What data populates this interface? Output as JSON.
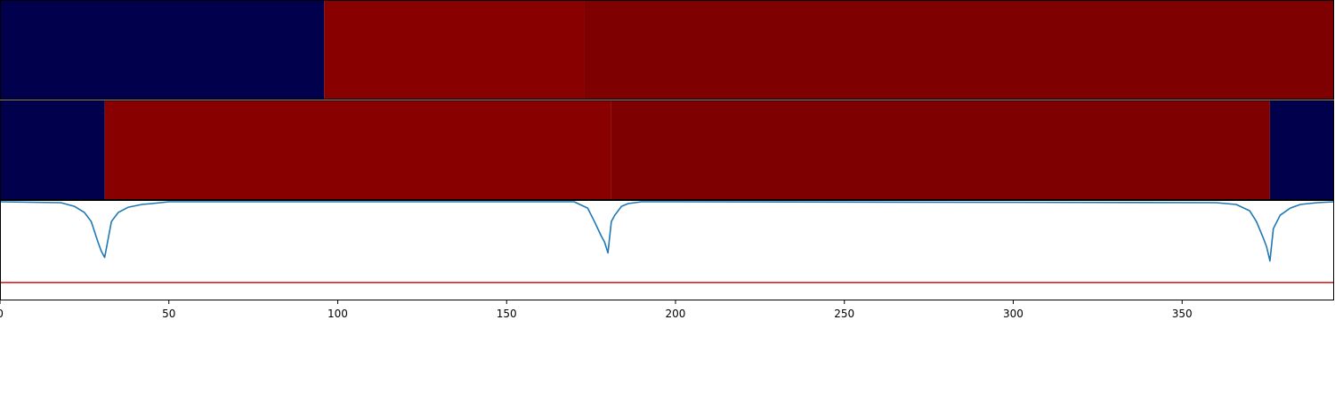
{
  "chart_data": [
    {
      "type": "heatmap",
      "panel": "segments-top",
      "xlim": [
        0,
        395
      ],
      "segments": [
        {
          "start": 0,
          "end": 96,
          "value": "low",
          "color": "#00004c"
        },
        {
          "start": 96,
          "end": 173,
          "value": "high",
          "color": "#880000"
        },
        {
          "start": 173,
          "end": 395,
          "value": "high",
          "color": "#7f0000"
        }
      ]
    },
    {
      "type": "heatmap",
      "panel": "segments-middle",
      "xlim": [
        0,
        395
      ],
      "segments": [
        {
          "start": 0,
          "end": 31,
          "value": "low",
          "color": "#00004c"
        },
        {
          "start": 31,
          "end": 181,
          "value": "high",
          "color": "#880000"
        },
        {
          "start": 181,
          "end": 376,
          "value": "high",
          "color": "#7f0000"
        },
        {
          "start": 376,
          "end": 395,
          "value": "low",
          "color": "#00004c"
        }
      ]
    },
    {
      "type": "line",
      "panel": "signal",
      "xlim": [
        0,
        395
      ],
      "ylim": [
        -1.1,
        0.02
      ],
      "series": [
        {
          "color": "#1f77b4",
          "x": [
            0,
            18,
            22,
            25,
            27,
            29,
            30,
            31,
            32,
            33,
            35,
            38,
            42,
            45,
            50,
            170,
            174,
            176,
            178,
            179,
            180,
            181,
            182,
            184,
            186,
            190,
            200,
            360,
            366,
            370,
            372,
            374,
            375,
            376,
            377,
            379,
            382,
            385,
            390,
            395
          ],
          "y": [
            0,
            -0.01,
            -0.05,
            -0.12,
            -0.22,
            -0.45,
            -0.55,
            -0.62,
            -0.42,
            -0.22,
            -0.12,
            -0.06,
            -0.03,
            -0.02,
            0,
            0,
            -0.07,
            -0.22,
            -0.38,
            -0.45,
            -0.57,
            -0.22,
            -0.15,
            -0.05,
            -0.02,
            0,
            0,
            -0.01,
            -0.03,
            -0.1,
            -0.22,
            -0.4,
            -0.5,
            -0.66,
            -0.3,
            -0.15,
            -0.07,
            -0.03,
            -0.01,
            0
          ]
        },
        {
          "color": "#d62728",
          "x": [
            0,
            395
          ],
          "y": [
            -0.9,
            -0.9
          ]
        }
      ]
    }
  ],
  "x_axis": {
    "ticks": [
      0,
      50,
      100,
      150,
      200,
      250,
      300,
      350
    ],
    "tick_labels": [
      "0",
      "50",
      "100",
      "150",
      "200",
      "250",
      "300",
      "350"
    ]
  }
}
